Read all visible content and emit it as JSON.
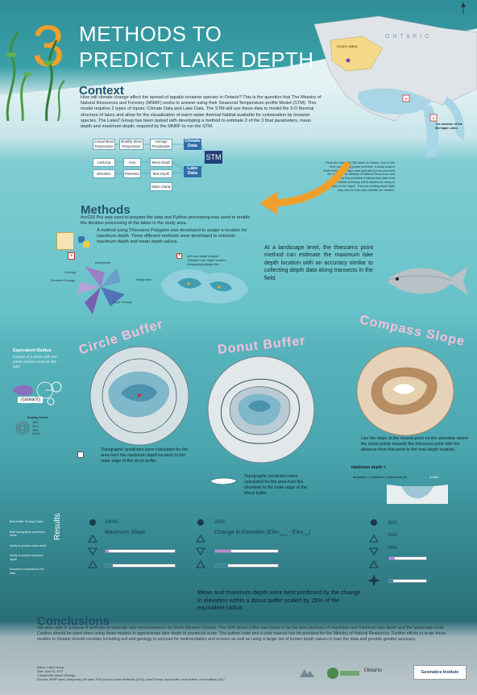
{
  "header": {
    "number": "3",
    "title_line1": "METHODS TO",
    "title_line2": "PREDICT LAKE DEPTH",
    "map_label": "O N T A R I O",
    "map_region": "STUDY AREA",
    "map_caption": "The location of the Michigan Lakes"
  },
  "context": {
    "heading": "Context",
    "body": "How will climate change affect the spread of aquatic invasive species in Ontario? This is the question that The Ministry of Natural Resources and Forestry (MNRF) seeks to answer using their Seasonal Temperature-profile Model (STM). This model requires 2 types of inputs: Climate Data and Lake Data. The STM will use these data to model the 3-D thermal structure of lakes and allow for the visualization of warm water thermal habitat available for colonization by invasive species. The LakeZ Group has been tasked with developing a method to estimate 2 of the 3 final parameters, mean depth and maximum depth, required by the MNRF to run the STM.",
    "side_note": "There are over 250,000 lakes in Ontario. Due to the time processing power and time, a study area in North Western Ontario was selected to test and build the model. The Ministry of Natural Resources and Forestry has provided a bathymetry data from Aquatic Habitat Inventory (AHI) studies for many of the lakes in the region. This pre-existing depth data was used to train and validate our models."
  },
  "flow": {
    "row1": [
      "Annual Mean Temperature",
      "Monthly Mean Temperature",
      "Average Precipitation"
    ],
    "climate": "Climate Data",
    "row2": [
      "Lat/Long",
      "Area",
      "Mean Depth"
    ],
    "row3": [
      "Elevation",
      "Perimeter",
      "Max Depth"
    ],
    "lake": "Lake Data",
    "water_clarity": "Water Clarity",
    "stm": "STM"
  },
  "methods": {
    "heading": "Methods",
    "body1": "ArcGIS Pro was used to prepare the data and Python processing was used to enable the iterative processing of the lakes in the study area.",
    "body2": "A method using Thiessens Polygons was developed to assign a location for maximum depth. Three different methods were developed to estimate maximum depth and mean depth values.",
    "legend": [
      "AHI max depth location",
      "Thiessen max depth location",
      "Geography/polygon line"
    ],
    "rose_labels": [
      "Bathymetry",
      "Geology",
      "Elevation Change",
      "Slope Change",
      "Topography"
    ],
    "landscape": "At a landscape level, the thiessens point method can estimate the maximum lake depth location with an accuracy similar to collecting depth data along transects in the field."
  },
  "equiv": {
    "heading": "Equivalent Radius",
    "body": "Radius of a circle with the same surface area as the lake",
    "formula": "√(area/π)",
    "scaling_title": "Scaling Factor",
    "scaling": [
      "25%",
      "50%",
      "75%",
      "100%"
    ]
  },
  "circle_buffer": {
    "title": "Circle Buffer",
    "caption": "Topographic predictors were calculated for the area from the maximum depth location to the outer edge of the circle buffer"
  },
  "donut_buffer": {
    "title": "Donut Buffer",
    "caption": "Topographic predictors were calculated for the area from the shoreline to the outer edge of the donut buffer"
  },
  "compass_slope": {
    "title": "Compass Slope",
    "caption": "Use the slope at the closest point on the shoreline where the slope points towards the thiessens point with the distance from that point to the max depth location.",
    "max_depth_label": "maximum depth =",
    "formula": "tan(slope) × (distance to thiessens pt)",
    "side_label": "Δ Elev"
  },
  "results": {
    "heading": "Results",
    "legend": [
      "Best Buffer Scaling Factor",
      "Best topographic predictors value",
      "Ability to predict mean depth",
      "Ability to predict maximum depth",
      "Accuracy compared to AHI data"
    ],
    "col1": {
      "pct": "100%",
      "predictor": "Maximum Slope",
      "bars": [
        0.05,
        0.1
      ]
    },
    "col2": {
      "pct": "25%",
      "predictor": "Change in Elevation (Elev",
      "sub1": "mean",
      "sep": " - Elev",
      "sub2": "min",
      "close": ")",
      "bars": [
        0.25,
        0.2
      ]
    },
    "col3": {
      "pct1": "N/A",
      "pct2": "N/A",
      "pct3": "N/A",
      "bars": [
        0.15,
        0.1
      ]
    },
    "statement": "Mean and maximum depth were best predicted by the change in elevation within a donut buffer scaled by 25% of the equivalent radius"
  },
  "conclusions": {
    "heading": "Conclusions",
    "body": "We were able to propose 3 methods to estimate lake morphometrics for North-Western Ontario. The 25% donut buffer was found to be the best predictor of maximum and minimum lake depth and the landscape level. Caution should be used when using these models to approximate lake depth at provincial scale. The python code and a user manual has be provided for the Ministry of Natural Resources. Further efforts to scale these models to Ontario should consider including soil and geology to account for sedimentation and erosion as well as using a larger set of known depth values to train the data and provide greater accuracy."
  },
  "footer": {
    "author": "Author: LakeZ Group",
    "date": "Date: June 21, 2017",
    "created": "Created with: Adobe InDesign",
    "sources": "Sources: MNRF lakes, bathymetry, AHI data, STM (used to create Whiteside (2016); LakeZ Group: donut buffer, circle buffers, circle buffer(s) 2017",
    "logos": [
      "Ontario",
      "Geomatics Institute"
    ]
  },
  "colors": {
    "accent": "#f0a02a",
    "title_pink": "#f6c1d9",
    "heading_blue": "#22536c",
    "stm_navy": "#243e7a",
    "bar_purple": "#b48fd6",
    "bar_teal": "#2b8aa2"
  }
}
